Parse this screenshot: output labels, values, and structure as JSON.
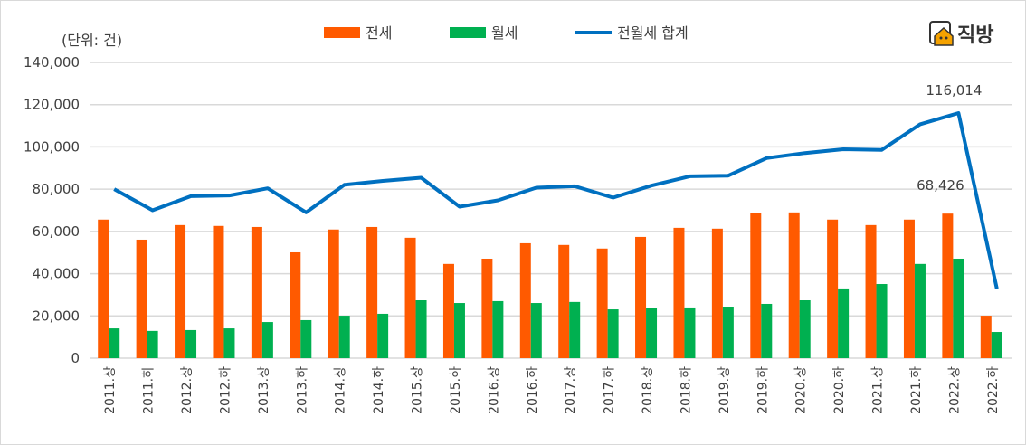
{
  "unit_label": "(단위: 건)",
  "logo_text": "직방",
  "colors": {
    "jeonse": "#ff5a00",
    "wolse": "#00b050",
    "total": "#0070c0",
    "grid": "#d9d9d9"
  },
  "chart_data": {
    "type": "bar+line",
    "categories": [
      "2011.상",
      "2011.하",
      "2012.상",
      "2012.하",
      "2013.상",
      "2013.하",
      "2014.상",
      "2014.하",
      "2015.상",
      "2015.하",
      "2016.상",
      "2016.하",
      "2017.상",
      "2017.하",
      "2018.상",
      "2018.하",
      "2019.상",
      "2019.하",
      "2020.상",
      "2020.하",
      "2021.상",
      "2021.하",
      "2022.상",
      "2022.하"
    ],
    "series": [
      {
        "name": "전세",
        "type": "bar",
        "values": [
          65600,
          56100,
          63000,
          62600,
          62100,
          50100,
          60900,
          62100,
          57000,
          44600,
          47100,
          54400,
          53600,
          51900,
          57400,
          61700,
          61300,
          68600,
          69000,
          65600,
          63000,
          65600,
          68426,
          20100
        ]
      },
      {
        "name": "월세",
        "type": "bar",
        "values": [
          14100,
          12900,
          13300,
          14100,
          17100,
          18000,
          20100,
          21000,
          27400,
          26100,
          27000,
          26100,
          26600,
          23100,
          23600,
          24000,
          24400,
          25700,
          27400,
          33000,
          35100,
          44600,
          47100,
          12400
        ]
      },
      {
        "name": "전월세 합계",
        "type": "line",
        "values": [
          80000,
          70000,
          76700,
          77000,
          80400,
          69000,
          82100,
          83900,
          85400,
          71700,
          74700,
          80700,
          81400,
          76000,
          81700,
          86100,
          86400,
          94700,
          97100,
          98900,
          98600,
          110700,
          116014,
          32900
        ]
      }
    ],
    "data_labels": [
      {
        "series": "전월세 합계",
        "category": "2022.상",
        "text": "116,014"
      },
      {
        "series": "전세",
        "category": "2022.상",
        "text": "68,426"
      }
    ],
    "y_ticks": [
      "0",
      "20,000",
      "40,000",
      "60,000",
      "80,000",
      "100,000",
      "120,000",
      "140,000"
    ],
    "ylim": [
      0,
      140000
    ],
    "grid": true,
    "legend": "top"
  }
}
